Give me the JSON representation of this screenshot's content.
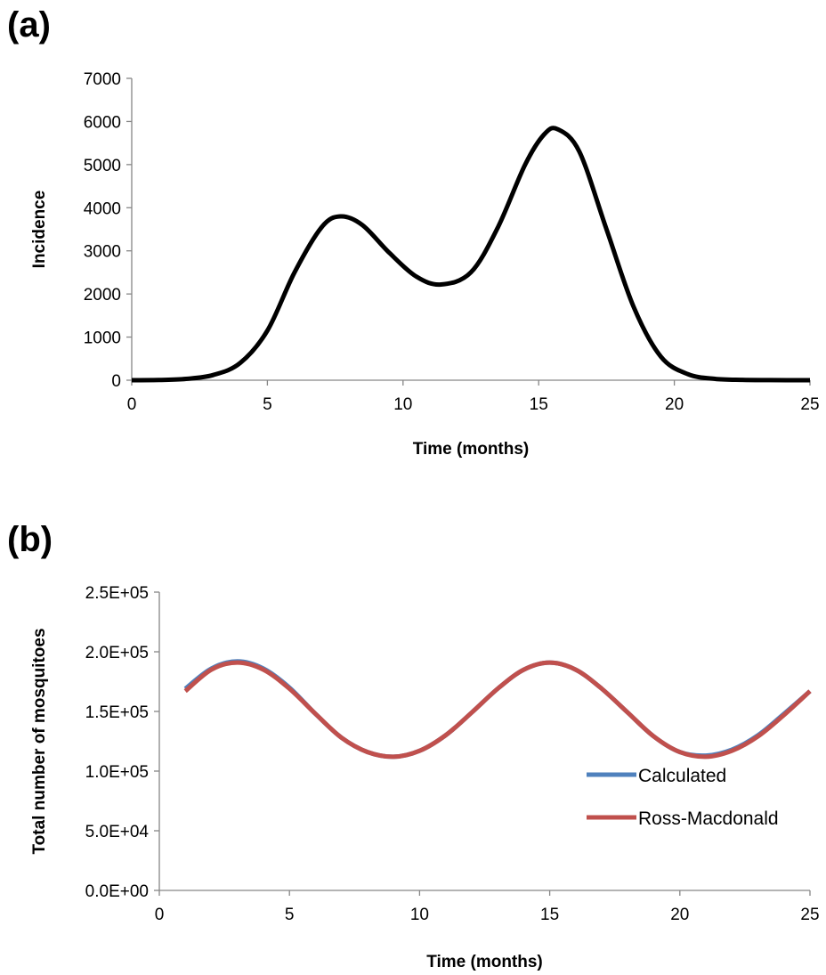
{
  "panels": {
    "a": "(a)",
    "b": "(b)"
  },
  "chart_data": [
    {
      "type": "line",
      "xlabel": "Time (months)",
      "ylabel": "Incidence",
      "xlim": [
        0,
        25
      ],
      "ylim": [
        0,
        7000
      ],
      "xticks": [
        "0",
        "5",
        "10",
        "15",
        "20",
        "25"
      ],
      "yticks": [
        "0",
        "1000",
        "2000",
        "3000",
        "4000",
        "5000",
        "6000",
        "7000"
      ],
      "grid": false,
      "series": [
        {
          "color": "#000000",
          "x": [
            0,
            1,
            2,
            3,
            4,
            5,
            6,
            7,
            7.7,
            8.5,
            9.5,
            10.5,
            11.4,
            12.5,
            13.5,
            14.5,
            15.2,
            15.7,
            16.5,
            17.5,
            18.5,
            19.5,
            20.5,
            21.5,
            22.5,
            23.5,
            25
          ],
          "y": [
            0,
            5,
            30,
            120,
            400,
            1150,
            2500,
            3550,
            3800,
            3600,
            2950,
            2400,
            2220,
            2500,
            3550,
            5000,
            5700,
            5820,
            5300,
            3500,
            1700,
            550,
            140,
            30,
            8,
            2,
            0
          ]
        }
      ]
    },
    {
      "type": "line",
      "xlabel": "Time (months)",
      "ylabel": "Total number of mosquitoes",
      "xlim": [
        0,
        25
      ],
      "ylim": [
        0,
        250000
      ],
      "xticks": [
        "0",
        "5",
        "10",
        "15",
        "20",
        "25"
      ],
      "yticks": [
        "0.0E+00",
        "5.0E+04",
        "1.0E+05",
        "1.5E+05",
        "2.0E+05",
        "2.5E+05"
      ],
      "grid": false,
      "legend": "right",
      "series": [
        {
          "name": "Calculated",
          "color": "#4f81bd",
          "x": [
            1,
            2,
            3,
            4,
            5,
            6,
            7,
            8,
            9,
            10,
            11,
            12,
            13,
            14,
            15,
            16,
            17,
            18,
            19,
            20,
            21,
            22,
            23,
            24,
            25
          ],
          "y": [
            169000,
            186000,
            192000,
            186000,
            170000,
            148000,
            128000,
            116000,
            112000,
            117000,
            130000,
            149000,
            169000,
            185000,
            191000,
            185000,
            169000,
            149000,
            129000,
            116000,
            113000,
            118000,
            130000,
            148000,
            167000
          ]
        },
        {
          "name": "Ross-Macdonald",
          "color": "#c0504d",
          "x": [
            1,
            2,
            3,
            4,
            5,
            6,
            7,
            8,
            9,
            10,
            11,
            12,
            13,
            14,
            15,
            16,
            17,
            18,
            19,
            20,
            21,
            22,
            23,
            24,
            25
          ],
          "y": [
            167000,
            185000,
            191000,
            185000,
            169000,
            148000,
            128000,
            116000,
            112000,
            117000,
            130000,
            149000,
            169000,
            185000,
            191000,
            185000,
            169000,
            149000,
            129000,
            116000,
            112000,
            117000,
            129000,
            147000,
            167000
          ]
        }
      ]
    }
  ]
}
